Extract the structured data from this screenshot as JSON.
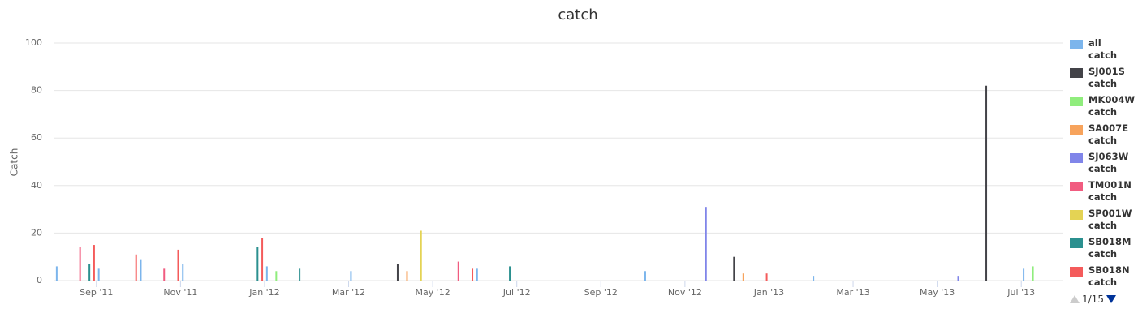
{
  "chart_data": {
    "type": "bar",
    "title": "catch",
    "y_label": "Catch",
    "ylim": [
      0,
      100
    ],
    "yticks": [
      0,
      20,
      40,
      60,
      80,
      100
    ],
    "grid": true,
    "xlim": [
      "2011-08",
      "2013-08"
    ],
    "xticks": [
      {
        "value": "2011-09",
        "label": "Sep '11"
      },
      {
        "value": "2011-11",
        "label": "Nov '11"
      },
      {
        "value": "2012-01",
        "label": "Jan '12"
      },
      {
        "value": "2012-03",
        "label": "Mar '12"
      },
      {
        "value": "2012-05",
        "label": "May '12"
      },
      {
        "value": "2012-07",
        "label": "Jul '12"
      },
      {
        "value": "2012-09",
        "label": "Sep '12"
      },
      {
        "value": "2012-11",
        "label": "Nov '12"
      },
      {
        "value": "2013-01",
        "label": "Jan '13"
      },
      {
        "value": "2013-03",
        "label": "Mar '13"
      },
      {
        "value": "2013-05",
        "label": "May '13"
      },
      {
        "value": "2013-07",
        "label": "Jul '13"
      }
    ],
    "legend_page": "1/15",
    "series": [
      {
        "name": "all catch",
        "color": "#7cb5ec",
        "x": [
          "2011-08",
          "2011-09",
          "2011-10",
          "2011-11",
          "2012-01",
          "2012-03",
          "2012-06",
          "2012-10",
          "2013-02",
          "2013-07"
        ],
        "values": [
          6,
          5,
          9,
          7,
          6,
          4,
          5,
          4,
          2,
          5
        ]
      },
      {
        "name": "SJ001S catch",
        "color": "#434348",
        "x": [
          "2012-04",
          "2012-12",
          "2013-06"
        ],
        "values": [
          7,
          10,
          82
        ]
      },
      {
        "name": "MK004W catch",
        "color": "#90ed7d",
        "x": [
          "2012-01",
          "2013-07"
        ],
        "values": [
          4,
          6
        ]
      },
      {
        "name": "SA007E catch",
        "color": "#f7a35c",
        "x": [
          "2012-04",
          "2012-12"
        ],
        "values": [
          4,
          3
        ]
      },
      {
        "name": "SJ063W catch",
        "color": "#8085e9",
        "x": [
          "2012-11",
          "2013-05"
        ],
        "values": [
          31,
          2
        ]
      },
      {
        "name": "TM001N catch",
        "color": "#f15c80",
        "x": [
          "2011-08",
          "2011-10",
          "2012-05"
        ],
        "values": [
          14,
          5,
          8
        ]
      },
      {
        "name": "SP001W catch",
        "color": "#e4d354",
        "x": [
          "2012-04"
        ],
        "values": [
          21
        ]
      },
      {
        "name": "SB018M catch",
        "color": "#2b908f",
        "x": [
          "2011-08",
          "2011-12",
          "2012-01",
          "2012-06"
        ],
        "values": [
          7,
          14,
          5,
          6
        ]
      },
      {
        "name": "SB018N catch",
        "color": "#f45b5b",
        "x": [
          "2011-08",
          "2011-09",
          "2011-10",
          "2011-12",
          "2012-05",
          "2012-12"
        ],
        "values": [
          15,
          11,
          13,
          18,
          5,
          3
        ]
      }
    ]
  }
}
